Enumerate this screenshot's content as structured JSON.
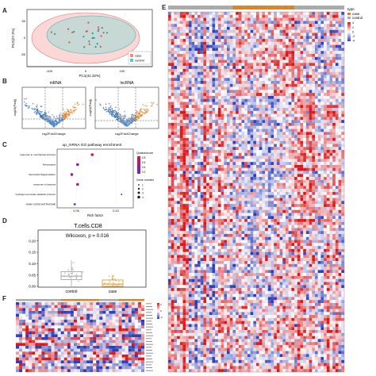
{
  "panel_labels": {
    "a": "A",
    "b": "B",
    "c": "C",
    "d": "D",
    "e": "E",
    "f": "F"
  },
  "chart_data": [
    {
      "id": "pca",
      "type": "scatter",
      "xlabel": "PC1(41.32%)",
      "ylabel": "PC2(27.3%)",
      "x_ticks": [
        "-100",
        "0",
        "100"
      ],
      "y_ticks": [
        "50",
        "0",
        "-50"
      ],
      "legend": [
        {
          "name": "case",
          "color": "#f28b82"
        },
        {
          "name": "control",
          "color": "#5bc8c6"
        }
      ],
      "legend_position": "bottom-right"
    },
    {
      "id": "volcano-mrna",
      "type": "scatter",
      "title": "mRNA",
      "xlabel": "log2FoldChange",
      "ylabel": "-log10(Padj)",
      "colors": {
        "up": "#e0842c",
        "down": "#3a72b6",
        "ns": "#999999"
      }
    },
    {
      "id": "volcano-lncrna",
      "type": "scatter",
      "title": "lncRNA",
      "xlabel": "log2FoldChange",
      "ylabel": "-log10(Padj)",
      "colors": {
        "up": "#e0842c",
        "down": "#3a72b6",
        "ns": "#999999"
      }
    },
    {
      "id": "go-dotplot",
      "type": "scatter",
      "title": "up_mRNA GO pathway enrichment",
      "xlabel": "Rich factor",
      "categories": [
        "response to mechanical stimulus",
        "Hemostasis",
        "Neutrophil degranulation",
        "response to hypoxia",
        "hydrogen peroxide catabolic process",
        "NABA CORE MATRISOME"
      ],
      "points": [
        {
          "category": "response to mechanical stimulus",
          "rich_factor": 0.09,
          "qvalue": 0.07,
          "gene_number": 3
        },
        {
          "category": "Hemostasis",
          "rich_factor": 0.065,
          "qvalue": 0.6,
          "gene_number": 3
        },
        {
          "category": "Neutrophil degranulation",
          "rich_factor": 0.055,
          "qvalue": 0.5,
          "gene_number": 3
        },
        {
          "category": "response to hypoxia",
          "rich_factor": 0.065,
          "qvalue": 0.4,
          "gene_number": 3
        },
        {
          "category": "hydrogen peroxide catabolic process",
          "rich_factor": 0.14,
          "qvalue": 0.8,
          "gene_number": 1
        },
        {
          "category": "NABA CORE MATRISOME",
          "rich_factor": 0.06,
          "qvalue": 0.85,
          "gene_number": 2
        }
      ],
      "x_ticks": [
        "0.05",
        "0.10"
      ],
      "legend_color_title": "Qvalue/score",
      "legend_color_ticks": [
        "0.8",
        "0.6",
        "0.4",
        "0.2"
      ],
      "legend_size_title": "Gene number",
      "legend_size_ticks": [
        "1",
        "2",
        "3",
        "4"
      ],
      "legend_position": "right"
    },
    {
      "id": "boxplot",
      "type": "box",
      "title": "T.cells.CD8",
      "annotation": "Wilcoxon, p = 0.016",
      "categories": [
        "control",
        "case"
      ],
      "colors": [
        "#9a9a9a",
        "#d9941e"
      ],
      "y_ticks": [
        "0.20",
        "0.15",
        "0.10",
        "0.05",
        "0.00"
      ],
      "ylim": [
        0,
        0.22
      ],
      "boxes": [
        {
          "name": "control",
          "min": 0.0,
          "q1": 0.03,
          "median": 0.045,
          "q3": 0.065,
          "max": 0.115
        },
        {
          "name": "case",
          "min": 0.0,
          "q1": 0.0,
          "median": 0.01,
          "q3": 0.028,
          "max": 0.05
        }
      ]
    },
    {
      "id": "heatmap-main",
      "type": "heatmap",
      "legend_title": "type",
      "legend_entries": [
        {
          "name": "case",
          "color": "#d9822b"
        },
        {
          "name": "control",
          "color": "#a9a9a9"
        }
      ],
      "scale_ticks": [
        "4",
        "2",
        "0",
        "-2",
        "-4"
      ],
      "colors": {
        "high": "#d7191c",
        "mid": "#ffffff",
        "low": "#2c3fb8"
      }
    },
    {
      "id": "heatmap-small",
      "type": "heatmap",
      "scale_ticks": [
        "2",
        "0",
        "-2"
      ],
      "colors": {
        "high": "#d7191c",
        "mid": "#ffffff",
        "low": "#2c3fb8"
      }
    }
  ]
}
